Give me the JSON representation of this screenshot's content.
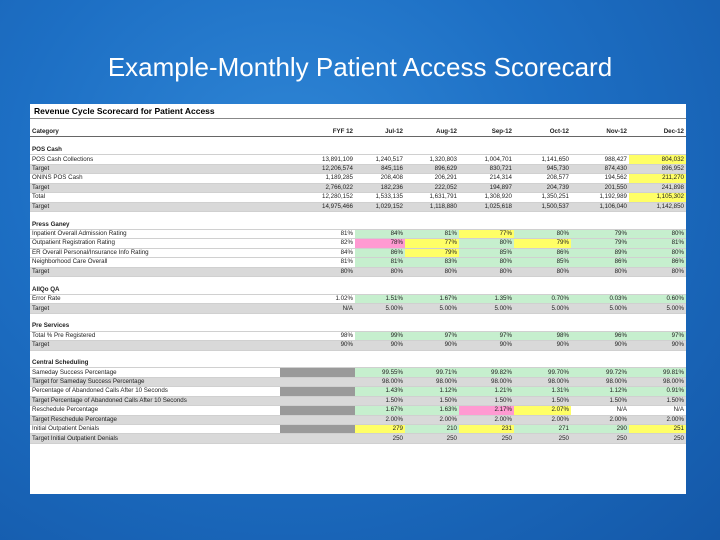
{
  "slide_title": "Example-Monthly Patient Access Scorecard",
  "sheet_title": "Revenue Cycle Scorecard for Patient Access",
  "columns": [
    "Category",
    "FYF 12",
    "Jul-12",
    "Aug-12",
    "Sep-12",
    "Oct-12",
    "Nov-12",
    "Dec-12"
  ],
  "rows": [
    {
      "type": "header"
    },
    {
      "type": "gap"
    },
    {
      "type": "section",
      "label": "POS Cash"
    },
    {
      "type": "data",
      "label": "POS Cash Collections",
      "values": [
        "13,891,109",
        "1,240,517",
        "1,320,803",
        "1,004,701",
        "1,141,650",
        "988,427",
        "804,032"
      ],
      "colors": [
        "",
        "",
        "",
        "",
        "",
        "",
        "yellow"
      ]
    },
    {
      "type": "data",
      "label": "Target",
      "shade": true,
      "values": [
        "12,206,574",
        "845,116",
        "896,629",
        "830,721",
        "945,730",
        "874,430",
        "896,952"
      ]
    },
    {
      "type": "data",
      "label": "ONINS POS Cash",
      "values": [
        "1,189,285",
        "208,408",
        "206,291",
        "214,314",
        "208,577",
        "194,562",
        "211,270"
      ],
      "colors": [
        "",
        "",
        "",
        "",
        "",
        "",
        "yellow"
      ]
    },
    {
      "type": "data",
      "label": "Target",
      "shade": true,
      "values": [
        "2,766,022",
        "182,236",
        "222,052",
        "194,897",
        "204,739",
        "201,550",
        "241,898"
      ]
    },
    {
      "type": "data",
      "label": "Total",
      "values": [
        "12,280,152",
        "1,533,135",
        "1,631,791",
        "1,308,920",
        "1,350,251",
        "1,192,989",
        "1,105,302"
      ],
      "colors": [
        "",
        "",
        "",
        "",
        "",
        "",
        "yellow"
      ]
    },
    {
      "type": "data",
      "label": "Target",
      "shade": true,
      "values": [
        "14,975,466",
        "1,029,152",
        "1,118,880",
        "1,025,618",
        "1,500,537",
        "1,106,040",
        "1,142,850"
      ]
    },
    {
      "type": "gap"
    },
    {
      "type": "section",
      "label": "Press Ganey"
    },
    {
      "type": "data",
      "label": "Inpatient Overall Admission Rating",
      "values": [
        "81%",
        "84%",
        "81%",
        "77%",
        "80%",
        "79%",
        "80%"
      ],
      "colors": [
        "",
        "green",
        "green",
        "yellow",
        "green",
        "green",
        "green"
      ]
    },
    {
      "type": "data",
      "label": "Outpatient Registration Rating",
      "values": [
        "82%",
        "78%",
        "77%",
        "80%",
        "79%",
        "79%",
        "81%"
      ],
      "colors": [
        "",
        "pink",
        "yellow",
        "green",
        "yellow",
        "green",
        "green"
      ]
    },
    {
      "type": "data",
      "label": "ER Overall Personal/Insurance Info Rating",
      "values": [
        "84%",
        "86%",
        "79%",
        "85%",
        "86%",
        "89%",
        "80%"
      ],
      "colors": [
        "",
        "green",
        "yellow",
        "green",
        "green",
        "green",
        "green"
      ]
    },
    {
      "type": "data",
      "label": "Neighborhood Care Overall",
      "values": [
        "81%",
        "81%",
        "83%",
        "80%",
        "85%",
        "86%",
        "86%"
      ],
      "colors": [
        "",
        "green",
        "green",
        "green",
        "green",
        "green",
        "green"
      ]
    },
    {
      "type": "data",
      "label": "Target",
      "shade": true,
      "values": [
        "80%",
        "80%",
        "80%",
        "80%",
        "80%",
        "80%",
        "80%"
      ]
    },
    {
      "type": "gap"
    },
    {
      "type": "section",
      "label": "AllQo QA"
    },
    {
      "type": "data",
      "label": "Error Rate",
      "values": [
        "1.02%",
        "1.51%",
        "1.67%",
        "1.35%",
        "0.70%",
        "0.03%",
        "0.60%"
      ],
      "colors": [
        "",
        "green",
        "green",
        "green",
        "green",
        "green",
        "green"
      ]
    },
    {
      "type": "data",
      "label": "Target",
      "shade": true,
      "values": [
        "N/A",
        "5.00%",
        "5.00%",
        "5.00%",
        "5.00%",
        "5.00%",
        "5.00%"
      ]
    },
    {
      "type": "gap"
    },
    {
      "type": "section",
      "label": "Pre Services"
    },
    {
      "type": "data",
      "label": "Total % Pre Registered",
      "values": [
        "98%",
        "99%",
        "97%",
        "97%",
        "98%",
        "96%",
        "97%"
      ],
      "colors": [
        "",
        "green",
        "green",
        "green",
        "green",
        "green",
        "green"
      ]
    },
    {
      "type": "data",
      "label": "Target",
      "shade": true,
      "values": [
        "90%",
        "90%",
        "90%",
        "90%",
        "90%",
        "90%",
        "90%"
      ]
    },
    {
      "type": "gap"
    },
    {
      "type": "section",
      "label": "Central Scheduling"
    },
    {
      "type": "data",
      "label": "Sameday Success Percentage",
      "values": [
        "",
        "99.55%",
        "99.71%",
        "99.82%",
        "99.70%",
        "99.72%",
        "99.81%"
      ],
      "colors": [
        "dark",
        "green",
        "green",
        "green",
        "green",
        "green",
        "green"
      ]
    },
    {
      "type": "data",
      "label": "Target for Sameday Success Percentage",
      "shade": true,
      "values": [
        "",
        "98.00%",
        "98.00%",
        "98.00%",
        "98.00%",
        "98.00%",
        "98.00%"
      ],
      "colors": [
        "dark",
        "",
        "",
        "",
        "",
        "",
        ""
      ]
    },
    {
      "type": "data",
      "label": "Percentage of Abandoned Calls After 10 Seconds",
      "values": [
        "",
        "1.43%",
        "1.12%",
        "1.21%",
        "1.31%",
        "1.12%",
        "0.91%"
      ],
      "colors": [
        "dark",
        "green",
        "green",
        "green",
        "green",
        "green",
        "green"
      ]
    },
    {
      "type": "data",
      "label": "Target Percentage of Abandoned Calls After 10 Seconds",
      "shade": true,
      "values": [
        "",
        "1.50%",
        "1.50%",
        "1.50%",
        "1.50%",
        "1.50%",
        "1.50%"
      ],
      "colors": [
        "dark",
        "",
        "",
        "",
        "",
        "",
        ""
      ]
    },
    {
      "type": "data",
      "label": "Reschedule Percentage",
      "values": [
        "",
        "1.67%",
        "1.63%",
        "2.17%",
        "2.07%",
        "N/A",
        "N/A"
      ],
      "colors": [
        "dark",
        "green",
        "green",
        "pink",
        "yellow",
        "",
        ""
      ]
    },
    {
      "type": "data",
      "label": "Target Reschedule Percentage",
      "shade": true,
      "values": [
        "",
        "2.00%",
        "2.00%",
        "2.00%",
        "2.00%",
        "2.00%",
        "2.00%"
      ],
      "colors": [
        "dark",
        "",
        "",
        "",
        "",
        "",
        ""
      ]
    },
    {
      "type": "data",
      "label": "Initial Outpatient Denials",
      "values": [
        "",
        "279",
        "210",
        "231",
        "271",
        "290",
        "251"
      ],
      "colors": [
        "dark",
        "yellow",
        "green",
        "yellow",
        "green",
        "green",
        "yellow"
      ]
    },
    {
      "type": "data",
      "label": "Target Initial Outpatient Denials",
      "shade": true,
      "values": [
        "",
        "250",
        "250",
        "250",
        "250",
        "250",
        "250"
      ],
      "colors": [
        "dark",
        "",
        "",
        "",
        "",
        "",
        ""
      ]
    }
  ],
  "colors": {
    "background": "#1d6fc4",
    "green": "#c6efce",
    "yellow": "#ffff66",
    "pink": "#ff9ad2",
    "target_shade": "#d9d9d9"
  }
}
